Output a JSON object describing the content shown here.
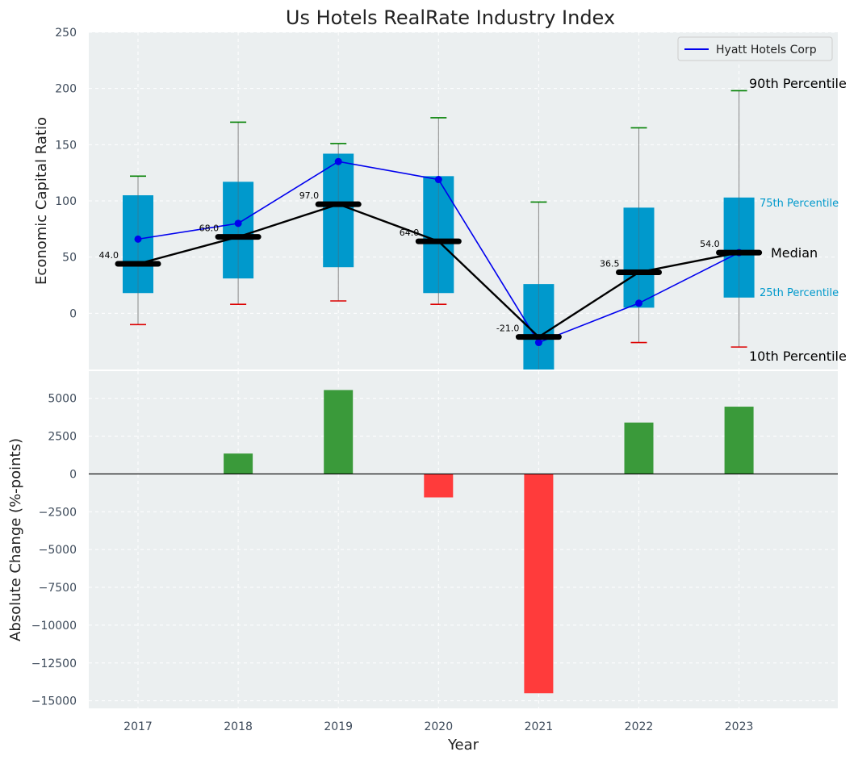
{
  "chart_data": [
    {
      "type": "box",
      "title": "Us Hotels RealRate Industry Index",
      "ylabel": "Economic Capital Ratio",
      "ylim": [
        -50,
        250
      ],
      "yticks": [
        0,
        50,
        100,
        150,
        200,
        250
      ],
      "categories": [
        "2017",
        "2018",
        "2019",
        "2020",
        "2021",
        "2022",
        "2023"
      ],
      "p10": [
        -10,
        8,
        11,
        8,
        null,
        -26,
        -30
      ],
      "p25": [
        18,
        31,
        41,
        18,
        -51,
        5,
        14
      ],
      "median": [
        44.0,
        68.0,
        97.0,
        64.0,
        -21.0,
        36.5,
        54.0
      ],
      "median_labels": [
        "44.0",
        "68.0",
        "97.0",
        "64.0",
        "-21.0",
        "36.5",
        "54.0"
      ],
      "p75": [
        105,
        117,
        142,
        122,
        26,
        94,
        103
      ],
      "p90": [
        122,
        170,
        151,
        174,
        99,
        165,
        198
      ],
      "company_series": {
        "name": "Hyatt Hotels Corp",
        "values": [
          66,
          80,
          135,
          119,
          -26,
          9,
          54
        ]
      },
      "annotations": {
        "p90": "90th Percentile",
        "p75": "75th Percentile",
        "median": "Median",
        "p25": "25th Percentile",
        "p10": "10th Percentile"
      },
      "legend_position": "top-right",
      "grid": true
    },
    {
      "type": "bar",
      "xlabel": "Year",
      "ylabel": "Absolute Change (%-points)",
      "ylim": [
        -15500,
        6800
      ],
      "yticks": [
        5000,
        2500,
        0,
        -2500,
        -5000,
        -7500,
        -10000,
        -12500,
        -15000
      ],
      "ytick_labels": [
        "5000",
        "2500",
        "0",
        "−2500",
        "−5000",
        "−7500",
        "−10000",
        "−12500",
        "−15000"
      ],
      "categories": [
        "2017",
        "2018",
        "2019",
        "2020",
        "2021",
        "2022",
        "2023"
      ],
      "values": [
        null,
        1350,
        5550,
        -1550,
        -14500,
        3400,
        4450
      ],
      "grid": true
    }
  ],
  "colors": {
    "background": "#ebeff0",
    "box": "#0099cc",
    "median": "#000000",
    "company": "#0000ee",
    "whisker_high": "#008000",
    "whisker_low": "#dd0000",
    "bar_positive": "#3a9a3a",
    "bar_negative": "#ff3b3b"
  }
}
